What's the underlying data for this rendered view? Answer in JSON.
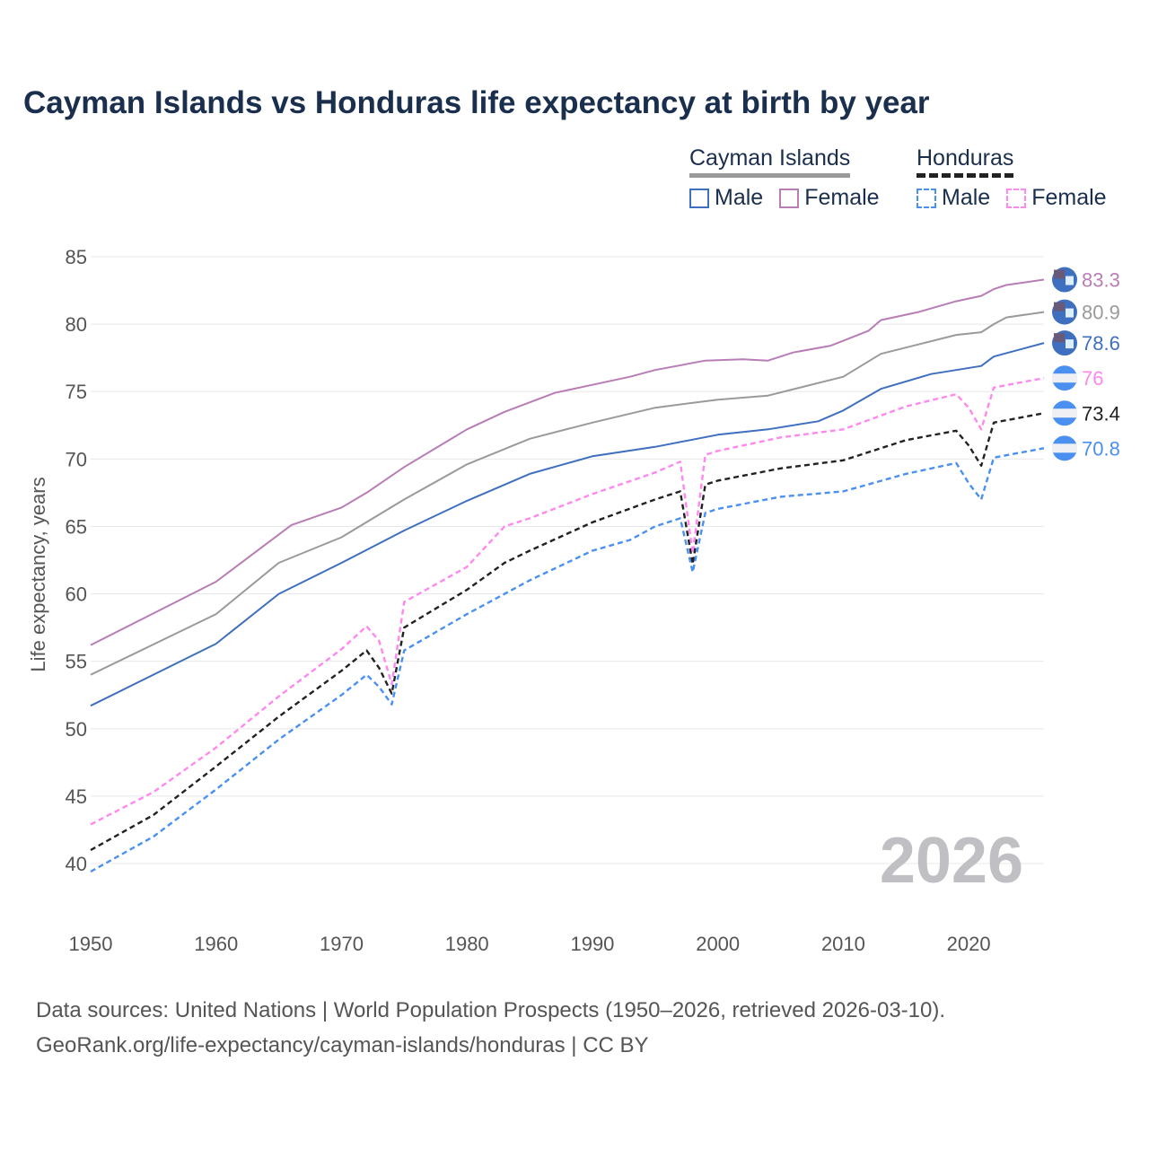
{
  "title": "Cayman Islands vs Honduras life expectancy at birth by year",
  "legend": {
    "groups": [
      {
        "name": "Cayman Islands",
        "items": [
          "Male",
          "Female"
        ]
      },
      {
        "name": "Honduras",
        "items": [
          "Male",
          "Female"
        ]
      }
    ]
  },
  "watermark_year": "2026",
  "footer": {
    "line1": "Data sources: United Nations | World Population Prospects (1950–2026, retrieved 2026-03-10).",
    "line2": "GeoRank.org/life-expectancy/cayman-islands/honduras | CC BY"
  },
  "chart_data": {
    "type": "line",
    "title": "Cayman Islands vs Honduras life expectancy at birth by year",
    "xlabel": "",
    "ylabel": "Life expectancy, years",
    "xlim": [
      1950,
      2026
    ],
    "ylim": [
      37,
      87
    ],
    "xticks": [
      1950,
      1960,
      1970,
      1980,
      1990,
      2000,
      2010,
      2020
    ],
    "yticks": [
      40,
      45,
      50,
      55,
      60,
      65,
      70,
      75,
      80,
      85
    ],
    "grid": true,
    "legend_position": "top-right",
    "series": [
      {
        "name": "Cayman Islands Female",
        "color": "#b97db6",
        "dash": false,
        "end_label": "83.3",
        "flag": "cayman",
        "x": [
          1950,
          1960,
          1966,
          1970,
          1972,
          1975,
          1980,
          1983,
          1987,
          1990,
          1993,
          1995,
          1999,
          2002,
          2004,
          2006,
          2009,
          2012,
          2013,
          2016,
          2019,
          2021,
          2022,
          2023,
          2026
        ],
        "y": [
          56.2,
          60.9,
          65.1,
          66.4,
          67.5,
          69.4,
          72.2,
          73.5,
          74.9,
          75.5,
          76.1,
          76.6,
          77.3,
          77.4,
          77.3,
          77.9,
          78.4,
          79.5,
          80.3,
          80.9,
          81.7,
          82.1,
          82.6,
          82.9,
          83.3
        ]
      },
      {
        "name": "Cayman Islands Total",
        "color": "#9a9a9a",
        "dash": false,
        "end_label": "80.9",
        "flag": "cayman",
        "x": [
          1950,
          1960,
          1965,
          1970,
          1975,
          1980,
          1985,
          1990,
          1995,
          2000,
          2004,
          2010,
          2013,
          2019,
          2021,
          2022,
          2023,
          2026
        ],
        "y": [
          54.0,
          58.5,
          62.3,
          64.2,
          67.0,
          69.6,
          71.5,
          72.7,
          73.8,
          74.4,
          74.7,
          76.1,
          77.8,
          79.2,
          79.4,
          80.0,
          80.5,
          80.9
        ]
      },
      {
        "name": "Cayman Islands Male",
        "color": "#3f6fbf",
        "dash": false,
        "end_label": "78.6",
        "flag": "cayman",
        "x": [
          1950,
          1960,
          1965,
          1970,
          1975,
          1980,
          1985,
          1990,
          1995,
          2000,
          2004,
          2008,
          2010,
          2013,
          2017,
          2021,
          2022,
          2026
        ],
        "y": [
          51.7,
          56.3,
          60.0,
          62.3,
          64.7,
          66.9,
          68.9,
          70.2,
          70.9,
          71.8,
          72.2,
          72.8,
          73.6,
          75.2,
          76.3,
          76.9,
          77.6,
          78.6
        ]
      },
      {
        "name": "Honduras Female",
        "color": "#ff88ee",
        "dash": true,
        "end_label": "76",
        "flag": "honduras",
        "x": [
          1950,
          1955,
          1960,
          1965,
          1970,
          1972,
          1973,
          1974,
          1975,
          1980,
          1983,
          1985,
          1990,
          1995,
          1997,
          1998,
          1999,
          2000,
          2005,
          2010,
          2015,
          2019,
          2020,
          2021,
          2022,
          2026
        ],
        "y": [
          42.9,
          45.3,
          48.6,
          52.4,
          55.9,
          57.6,
          56.5,
          53.3,
          59.4,
          62.0,
          65.0,
          65.6,
          67.4,
          69.0,
          69.8,
          63.0,
          70.3,
          70.6,
          71.6,
          72.2,
          73.9,
          74.8,
          73.8,
          72.2,
          75.3,
          76.0
        ]
      },
      {
        "name": "Honduras Total",
        "color": "#222222",
        "dash": true,
        "end_label": "73.4",
        "flag": "honduras",
        "x": [
          1950,
          1955,
          1960,
          1965,
          1970,
          1972,
          1973,
          1974,
          1975,
          1980,
          1983,
          1985,
          1990,
          1995,
          1997,
          1998,
          1999,
          2000,
          2005,
          2010,
          2015,
          2019,
          2020,
          2021,
          2022,
          2026
        ],
        "y": [
          41.0,
          43.6,
          47.2,
          50.9,
          54.3,
          55.8,
          54.5,
          52.6,
          57.5,
          60.3,
          62.3,
          63.2,
          65.3,
          67.0,
          67.6,
          62.2,
          68.1,
          68.4,
          69.3,
          69.9,
          71.4,
          72.1,
          71.0,
          69.5,
          72.7,
          73.4
        ]
      },
      {
        "name": "Honduras Male",
        "color": "#4a90f0",
        "dash": true,
        "end_label": "70.8",
        "flag": "honduras",
        "x": [
          1950,
          1955,
          1960,
          1965,
          1970,
          1972,
          1973,
          1974,
          1975,
          1980,
          1985,
          1990,
          1993,
          1995,
          1997,
          1998,
          1999,
          2000,
          2005,
          2010,
          2015,
          2019,
          2020,
          2021,
          2022,
          2026
        ],
        "y": [
          39.4,
          42.0,
          45.5,
          49.2,
          52.5,
          54.0,
          53.1,
          51.8,
          55.8,
          58.5,
          61.0,
          63.2,
          64.0,
          65.0,
          65.6,
          61.6,
          66.0,
          66.3,
          67.2,
          67.6,
          68.9,
          69.7,
          68.2,
          67.0,
          70.1,
          70.8
        ]
      }
    ]
  }
}
